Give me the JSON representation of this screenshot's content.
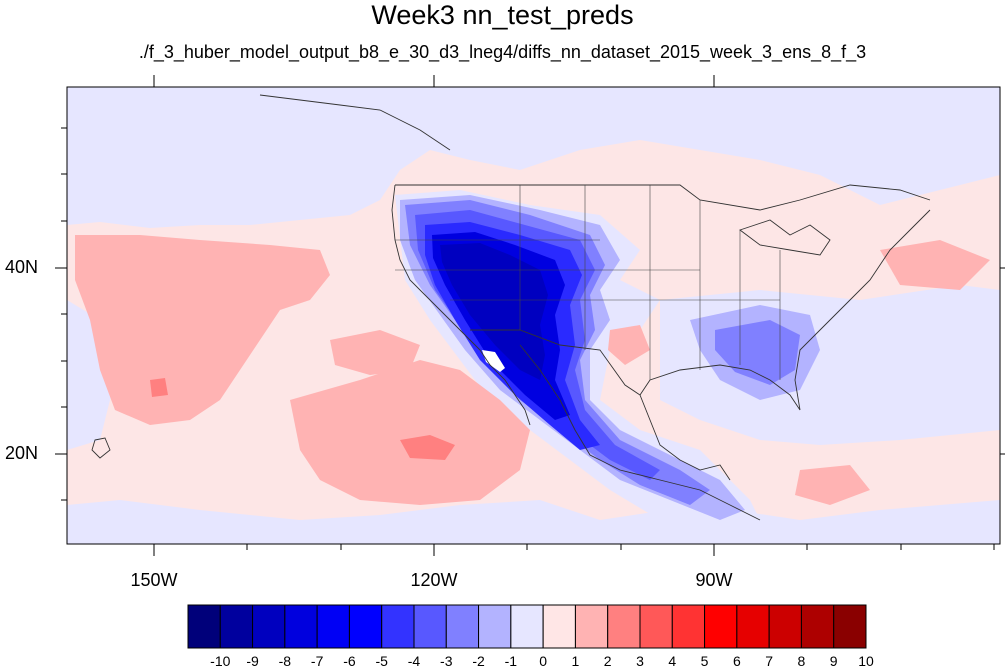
{
  "title": "Week3 nn_test_preds",
  "subtitle": "./f_3_huber_model_output_b8_e_30_d3_lneg4/diffs_nn_dataset_2015_week_3_ens_8_f_3",
  "axes": {
    "x_labels": [
      "150W",
      "120W",
      "90W"
    ],
    "y_labels": [
      "40N",
      "20N"
    ]
  },
  "colorbar": {
    "labels": [
      "-10",
      "-9",
      "-8",
      "-7",
      "-6",
      "-5",
      "-4",
      "-3",
      "-2",
      "-1",
      "0",
      "1",
      "2",
      "3",
      "4",
      "5",
      "6",
      "7",
      "8",
      "9",
      "10"
    ],
    "colors": [
      "#00007a",
      "#00009e",
      "#0000bf",
      "#0000de",
      "#0000f5",
      "#0000ff",
      "#3333ff",
      "#5858ff",
      "#8080ff",
      "#b3b3ff",
      "#e6e6ff",
      "#ffe6e6",
      "#ffb3b3",
      "#ff8080",
      "#ff5858",
      "#ff3333",
      "#ff0000",
      "#e60000",
      "#cc0000",
      "#ad0000",
      "#8a0000"
    ]
  },
  "colors": {
    "ocean_base": "#fde6e6",
    "neg1": "#e6e6ff",
    "neg2": "#b3b3ff",
    "neg3": "#8080ff",
    "neg4": "#5858ff",
    "neg5": "#2a2aff",
    "neg6": "#0000e0",
    "neg7": "#0000c0",
    "pos1": "#ffb3b3",
    "pos2": "#ff8080"
  }
}
